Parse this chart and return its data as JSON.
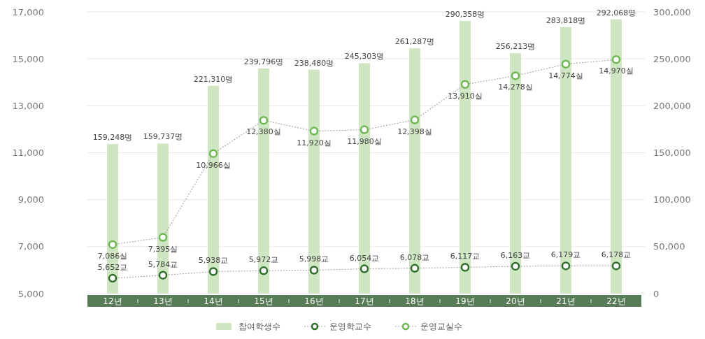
{
  "chart_data": {
    "type": "bar",
    "categories": [
      "12년",
      "13년",
      "14년",
      "15년",
      "16년",
      "17년",
      "18년",
      "19년",
      "20년",
      "21년",
      "22년"
    ],
    "series": [
      {
        "name": "참여학생수",
        "axis": "y2",
        "color": "#cfe6c2",
        "values": [
          159248,
          159737,
          221310,
          239796,
          238480,
          245303,
          261287,
          290358,
          256213,
          283818,
          292068
        ],
        "value_labels": [
          "159,248명",
          "159,737명",
          "221,310명",
          "239,796명",
          "238,480명",
          "245,303명",
          "261,287명",
          "290,358명",
          "256,213명",
          "283,818명",
          "292,068명"
        ]
      },
      {
        "name": "운영학교수",
        "type": "line",
        "color": "#2f6b2a",
        "marker": "circle",
        "line_style": "dotted",
        "values": [
          5652,
          5784,
          5938,
          5972,
          5998,
          6054,
          6078,
          6117,
          6163,
          6179,
          6178
        ],
        "value_labels": [
          "5,652교",
          "5,784교",
          "5,938교",
          "5,972교",
          "5,998교",
          "6,054교",
          "6,078교",
          "6,117교",
          "6,163교",
          "6,179교",
          "6,178교"
        ]
      },
      {
        "name": "운영교실수",
        "type": "line",
        "color": "#6cb552",
        "marker": "circle",
        "line_style": "dotted",
        "values": [
          7086,
          7395,
          10966,
          12380,
          11920,
          11980,
          12398,
          13910,
          14278,
          14774,
          14970
        ],
        "value_labels": [
          "7,086실",
          "7,395실",
          "10,966실",
          "12,380실",
          "11,920실",
          "11,980실",
          "12,398실",
          "13,910실",
          "14,278실",
          "14,774실",
          "14,970실"
        ]
      }
    ],
    "ylim": [
      5000,
      17000
    ],
    "yticks": [
      {
        "value": 5000,
        "label": "5,000"
      },
      {
        "value": 7000,
        "label": "7,000"
      },
      {
        "value": 9000,
        "label": "9,000"
      },
      {
        "value": 11000,
        "label": "11,000"
      },
      {
        "value": 13000,
        "label": "13,000"
      },
      {
        "value": 15000,
        "label": "15,000"
      },
      {
        "value": 17000,
        "label": "17,000"
      }
    ],
    "y2lim": [
      0,
      300000
    ],
    "y2ticks": [
      0,
      {
        "value": 50000,
        "label": "50,000"
      },
      {
        "value": 100000,
        "label": "100,000"
      },
      {
        "value": 150000,
        "label": "150,000"
      },
      {
        "value": 200000,
        "label": "200,000"
      },
      {
        "value": 250000,
        "label": "250,000"
      },
      {
        "value": 300000,
        "label": "300,000"
      }
    ],
    "grid": "y",
    "legend": "bottom"
  }
}
